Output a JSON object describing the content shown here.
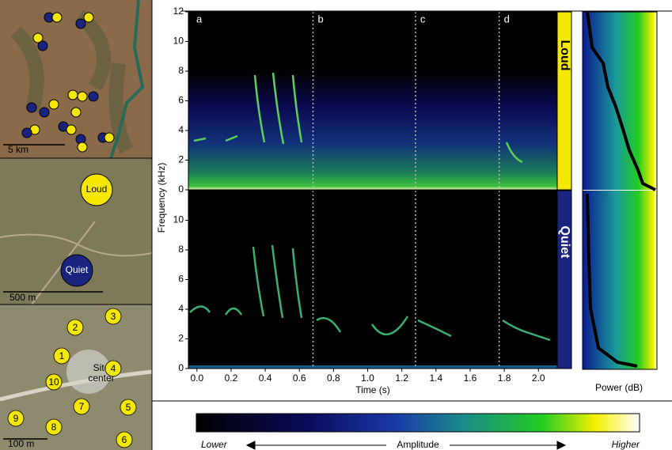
{
  "maps": {
    "scale_top": "5 km",
    "loud": "Loud",
    "scale_mid": "500 m",
    "quiet": "Quiet",
    "sites": [
      "1",
      "2",
      "3",
      "4",
      "5",
      "6",
      "7",
      "8",
      "9",
      "10"
    ],
    "site_center": [
      "Site",
      "center"
    ],
    "scale_bottom": "100 m"
  },
  "ylabel": "Frequency (kHz)",
  "power_label": "Power (dB)",
  "colorbar": {
    "low": "Lower",
    "label": "Amplitude",
    "high": "Higher"
  },
  "chart_data": [
    {
      "type": "spectrogram",
      "side_label": "Loud",
      "side_color": "#f5e800",
      "xlim": [
        -0.05,
        2.11
      ],
      "ylim": [
        0,
        12
      ],
      "yticks": [
        0,
        2,
        4,
        6,
        8,
        10,
        12
      ],
      "dividers": [
        0.68,
        1.28,
        1.77
      ],
      "segment_labels": [
        "a",
        "b",
        "c",
        "d"
      ]
    },
    {
      "type": "spectrogram",
      "side_label": "Quiet",
      "side_color": "#1a237e",
      "xlim": [
        -0.05,
        2.11
      ],
      "ylim": [
        0,
        12
      ],
      "yticks": [
        0,
        2,
        4,
        6,
        8,
        10
      ],
      "xticks": [
        {
          "value": 0,
          "label": "0.0"
        },
        0.2,
        0.4,
        0.6,
        0.8,
        {
          "value": 1,
          "label": "1.0"
        },
        1.2,
        1.4,
        1.6,
        1.8,
        {
          "value": 2,
          "label": "2.0"
        }
      ],
      "xlabel": "Time (s)",
      "dividers": [
        0.68,
        1.28,
        1.77
      ]
    }
  ]
}
